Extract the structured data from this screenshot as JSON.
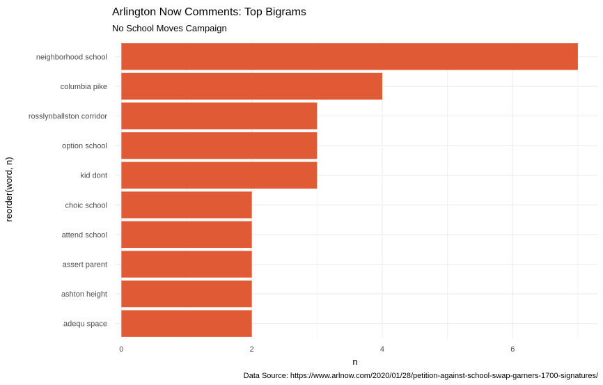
{
  "chart_data": {
    "type": "bar",
    "orientation": "horizontal",
    "title": "Arlington Now Comments: Top Bigrams",
    "subtitle": "No School Moves Campaign",
    "xlabel": "n",
    "ylabel": "reorder(word, n)",
    "caption": "Data Source: https://www.arlnow.com/2020/01/28/petition-against-school-swap-garners-1700-signatures/",
    "categories": [
      "neighborhood school",
      "columbia pike",
      "rosslynballston corridor",
      "option school",
      "kid dont",
      "choic school",
      "attend school",
      "assert parent",
      "ashton height",
      "adequ space"
    ],
    "values": [
      7,
      4,
      3,
      3,
      3,
      2,
      2,
      2,
      2,
      2
    ],
    "xlim": [
      -0.1,
      7.3
    ],
    "xticks": [
      0,
      2,
      4,
      6
    ],
    "grid": true,
    "bar_color": "#e05a36"
  }
}
